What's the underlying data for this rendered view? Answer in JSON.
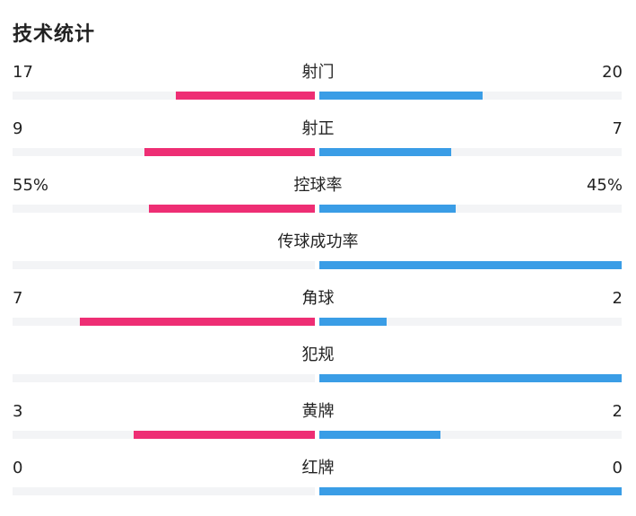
{
  "title": "技术统计",
  "colors": {
    "home": "#ee2e74",
    "away": "#3a9de6",
    "track": "#f3f4f6"
  },
  "stats": [
    {
      "name": "射门",
      "home": "17",
      "away": "20",
      "home_share": 0.459,
      "away_share": 0.541
    },
    {
      "name": "射正",
      "home": "9",
      "away": "7",
      "home_share": 0.5625,
      "away_share": 0.4375
    },
    {
      "name": "控球率",
      "home": "55%",
      "away": "45%",
      "home_share": 0.55,
      "away_share": 0.45
    },
    {
      "name": "传球成功率",
      "home": "",
      "away": "",
      "home_share": 0.0,
      "away_share": 1.0
    },
    {
      "name": "角球",
      "home": "7",
      "away": "2",
      "home_share": 0.778,
      "away_share": 0.222
    },
    {
      "name": "犯规",
      "home": "",
      "away": "",
      "home_share": 0.0,
      "away_share": 1.0
    },
    {
      "name": "黄牌",
      "home": "3",
      "away": "2",
      "home_share": 0.6,
      "away_share": 0.4
    },
    {
      "name": "红牌",
      "home": "0",
      "away": "0",
      "home_share": 0.0,
      "away_share": 1.0
    }
  ]
}
